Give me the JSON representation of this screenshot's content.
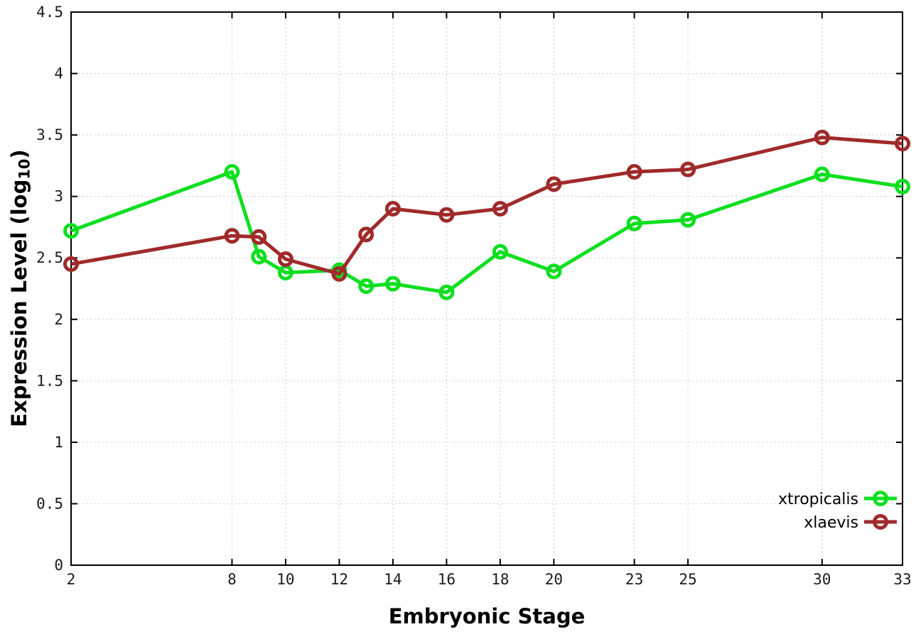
{
  "chart_data": {
    "type": "line",
    "title": "",
    "xlabel": "Embryonic Stage",
    "ylabel": "Expression Level (log10)",
    "ylabel_parts": {
      "main": "Expression Level (log",
      "sub": "10",
      "end": ")"
    },
    "xlim": [
      2,
      33
    ],
    "ylim": [
      0,
      4.5
    ],
    "x_ticks": [
      2,
      8,
      10,
      12,
      14,
      16,
      18,
      20,
      23,
      25,
      30,
      33
    ],
    "y_ticks": [
      0,
      0.5,
      1,
      1.5,
      2,
      2.5,
      3,
      3.5,
      4,
      4.5
    ],
    "grid": true,
    "legend": {
      "position": "bottom-right"
    },
    "x": [
      2,
      8,
      9,
      10,
      12,
      13,
      14,
      16,
      18,
      20,
      23,
      25,
      30,
      33
    ],
    "series": [
      {
        "name": "xtropicalis",
        "color": "#0ddf1f",
        "marker": "open-circle",
        "values": [
          2.72,
          3.2,
          2.51,
          2.38,
          2.4,
          2.27,
          2.29,
          2.22,
          2.55,
          2.39,
          2.78,
          2.81,
          3.18,
          3.08
        ]
      },
      {
        "name": "xlaevis",
        "color": "#a02a2a",
        "marker": "open-circle",
        "values": [
          2.45,
          2.68,
          2.67,
          2.49,
          2.37,
          2.69,
          2.9,
          2.85,
          2.9,
          3.1,
          3.2,
          3.22,
          3.48,
          3.43
        ]
      }
    ],
    "style": {
      "background": "#ffffff",
      "border_color": "#000000",
      "grid_color": "#bdbdbd",
      "tick_label_color": "#1a1a1a"
    }
  }
}
